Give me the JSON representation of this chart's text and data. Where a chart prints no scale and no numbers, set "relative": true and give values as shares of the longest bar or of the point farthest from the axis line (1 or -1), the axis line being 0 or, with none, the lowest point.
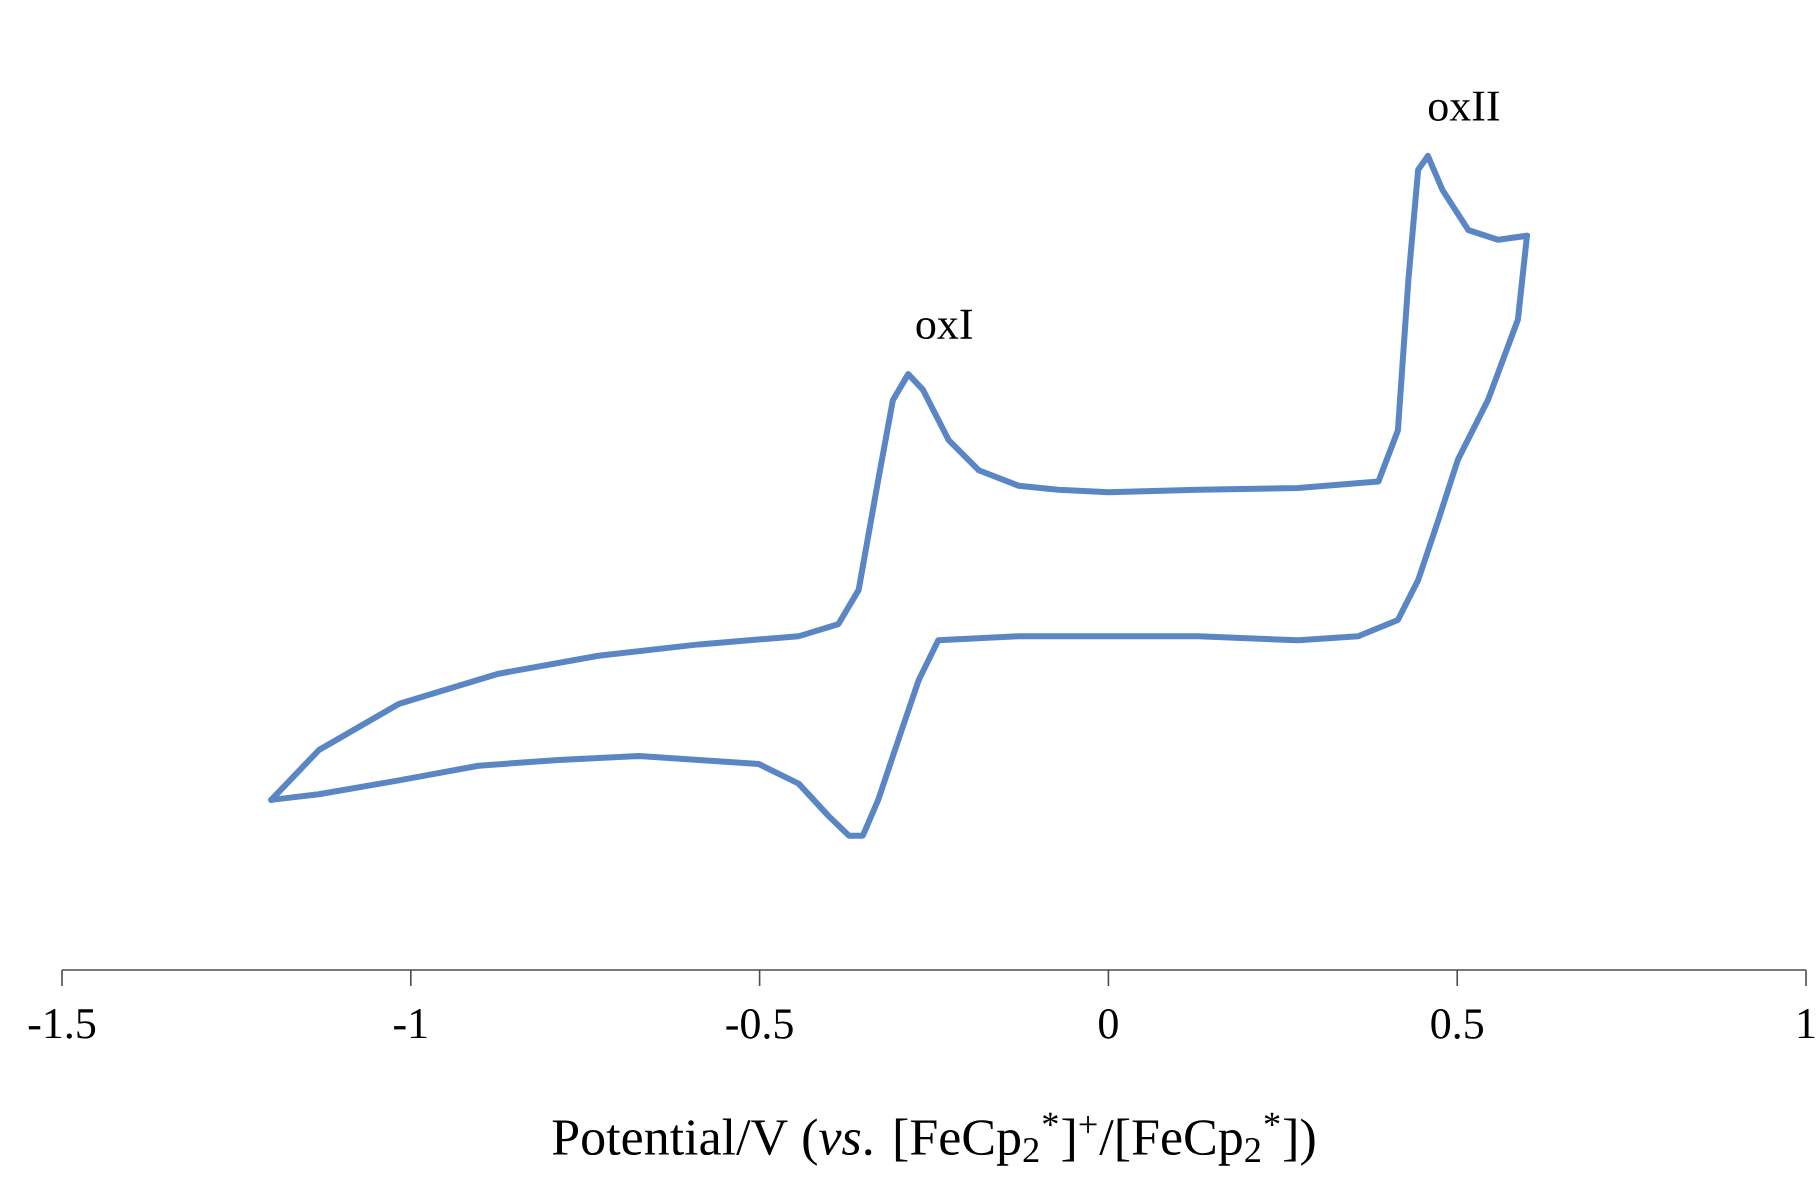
{
  "chart_data": {
    "type": "line",
    "relative": true,
    "xlabel": "Potential/V (*vs*. [FeCp$_{2}$$^{*}$]$^{+}$/[FeCp$_{2}$$^{*}$])",
    "xlim": [
      -1.5,
      1
    ],
    "xticks": [
      -1.5,
      -1,
      -0.5,
      0,
      0.5,
      1
    ],
    "annotations": [
      {
        "text": "oxI",
        "x": -0.287,
        "y": 0.732
      },
      {
        "text": "oxII",
        "x": 0.458,
        "y": 1
      }
    ],
    "series": [
      {
        "color": "#5b86c5",
        "x": [
          -1.2,
          -1.132,
          -1.017,
          -0.874,
          -0.731,
          -0.587,
          -0.444,
          -0.387,
          -0.358,
          -0.33,
          -0.309,
          -0.287,
          -0.266,
          -0.229,
          -0.186,
          -0.129,
          -0.072,
          0,
          0.129,
          0.272,
          0.387,
          0.415,
          0.43,
          0.444,
          0.458,
          0.479,
          0.516,
          0.559,
          0.6
        ],
        "values": [
          0.209,
          0.27,
          0.327,
          0.364,
          0.386,
          0.4,
          0.41,
          0.425,
          0.467,
          0.602,
          0.7,
          0.732,
          0.713,
          0.651,
          0.614,
          0.595,
          0.59,
          0.587,
          0.59,
          0.592,
          0.6,
          0.663,
          0.848,
          0.983,
          1,
          0.958,
          0.909,
          0.897,
          0.902
        ]
      },
      {
        "color": "#5b86c5",
        "x": [
          0.6,
          0.587,
          0.544,
          0.501,
          0.473,
          0.444,
          0.415,
          0.358,
          0.272,
          0.129,
          0,
          -0.129,
          -0.244,
          -0.272,
          -0.301,
          -0.33,
          -0.352,
          -0.372,
          -0.401,
          -0.444,
          -0.501,
          -0.587,
          -0.673,
          -0.788,
          -0.903,
          -1.017,
          -1.132,
          -1.2
        ],
        "values": [
          0.902,
          0.799,
          0.7,
          0.627,
          0.553,
          0.479,
          0.43,
          0.41,
          0.405,
          0.41,
          0.41,
          0.41,
          0.405,
          0.356,
          0.283,
          0.209,
          0.165,
          0.165,
          0.189,
          0.229,
          0.253,
          0.258,
          0.263,
          0.258,
          0.251,
          0.233,
          0.216,
          0.209
        ]
      }
    ]
  }
}
